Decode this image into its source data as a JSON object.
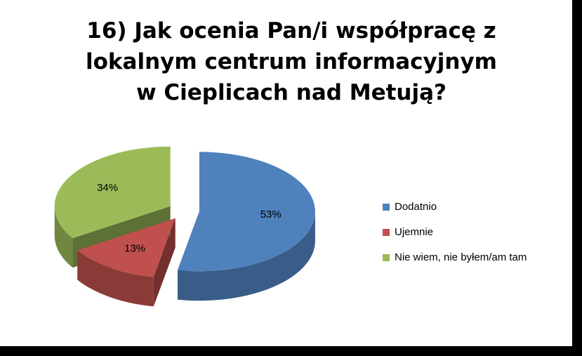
{
  "chart_data": {
    "type": "pie",
    "title": "16) Jak ocenia Pan/i współpracę z lokalnym centrum informacyjnym w Cieplicach nad Metują?",
    "categories": [
      "Dodatnio",
      "Ujemnie",
      "Nie wiem, nie byłem/am tam"
    ],
    "values": [
      53,
      13,
      34
    ],
    "value_labels": [
      "53%",
      "13%",
      "34%"
    ],
    "colors": [
      "#4f81bd",
      "#c0504d",
      "#9bbb59"
    ],
    "legend": "right"
  }
}
